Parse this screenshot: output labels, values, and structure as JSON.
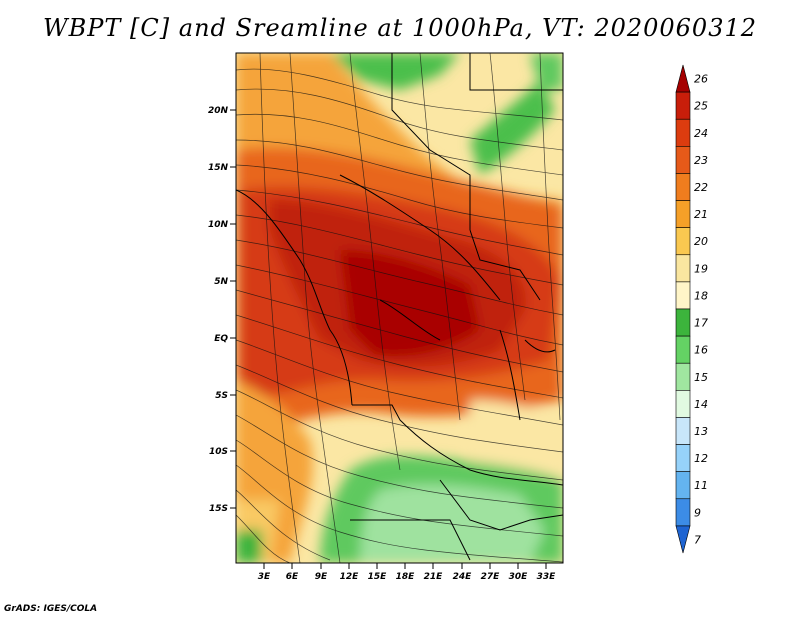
{
  "title": "WBPT [C] and Sreamline at 1000hPa, VT: 2020060312",
  "footer": "GrADS: IGES/COLA",
  "axes": {
    "lat_ticks": [
      "20N",
      "15N",
      "10N",
      "5N",
      "EQ",
      "5S",
      "10S",
      "15S"
    ],
    "lon_ticks": [
      "3E",
      "6E",
      "9E",
      "12E",
      "15E",
      "18E",
      "21E",
      "24E",
      "27E",
      "30E",
      "33E"
    ]
  },
  "colorbar": {
    "labels": [
      "26",
      "25",
      "24",
      "23",
      "22",
      "21",
      "20",
      "19",
      "18",
      "17",
      "16",
      "15",
      "14",
      "13",
      "12",
      "11",
      "9",
      "7"
    ],
    "colors": [
      "#a50000",
      "#c81e0a",
      "#dc3c0f",
      "#e65a19",
      "#f07d1e",
      "#f5a028",
      "#fac850",
      "#fae6a0",
      "#fff5c8",
      "#3cb43c",
      "#64d264",
      "#a0e6a0",
      "#e1fae1",
      "#c8e6fa",
      "#96d2fa",
      "#64b4f0",
      "#3c8ce6",
      "#1e64d2"
    ]
  }
}
